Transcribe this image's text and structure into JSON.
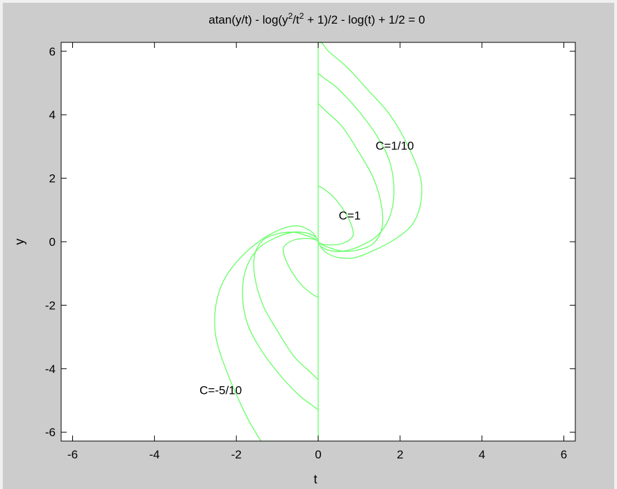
{
  "chart_data": {
    "type": "line",
    "title": "atan(y/t) - log(y^2/t^2 + 1)/2 - log(t) + 1/2 = 0",
    "title_parts": {
      "p1": "atan(y/t) - log(y",
      "sup1": "2",
      "p2": "/t",
      "sup2": "2",
      "p3": " + 1)/2 - log(t) + 1/2 = 0"
    },
    "xlabel": "t",
    "ylabel": "y",
    "xlim": [
      -6.28,
      6.28
    ],
    "ylim": [
      -6.28,
      6.28
    ],
    "xticks": [
      -6,
      -4,
      -2,
      0,
      2,
      4,
      6
    ],
    "yticks": [
      -6,
      -4,
      -2,
      0,
      2,
      4,
      6
    ],
    "xtick_labels": [
      "-6",
      "-4",
      "-2",
      "0",
      "2",
      "4",
      "6"
    ],
    "ytick_labels": [
      "-6",
      "-4",
      "-2",
      "0",
      "2",
      "4",
      "6"
    ],
    "line_color": "#66ff66",
    "annotations": [
      {
        "text": "C=1/10",
        "x": 1.4,
        "y": 2.9
      },
      {
        "text": "C=1",
        "x": 0.5,
        "y": 0.7
      },
      {
        "text": "C=-5/10",
        "x": -2.9,
        "y": -4.8
      }
    ],
    "series": [
      {
        "x": [
          0.0,
          0.0
        ],
        "y": [
          -6.28,
          6.28
        ]
      },
      {
        "x": [
          0.0,
          0.1,
          0.25,
          0.7,
          1.2,
          1.75,
          2.2,
          2.5,
          2.5,
          2.3,
          1.9,
          1.4,
          0.9,
          0.5,
          0.2,
          0.05
        ],
        "y": [
          6.28,
          6.25,
          6.0,
          5.5,
          4.8,
          4.0,
          3.0,
          2.0,
          1.2,
          0.55,
          0.1,
          -0.25,
          -0.5,
          -0.5,
          -0.35,
          -0.15
        ]
      },
      {
        "x": [
          0.0,
          0.15,
          0.5,
          1.0,
          1.45,
          1.75,
          1.85,
          1.75,
          1.45,
          1.0,
          0.6,
          0.3,
          0.1,
          0.0
        ],
        "y": [
          5.3,
          5.15,
          4.8,
          4.1,
          3.3,
          2.5,
          1.6,
          0.8,
          0.2,
          -0.15,
          -0.3,
          -0.28,
          -0.18,
          -0.05
        ]
      },
      {
        "x": [
          0.0,
          0.2,
          0.6,
          1.0,
          1.35,
          1.55,
          1.55,
          1.35,
          1.0,
          0.6,
          0.3,
          0.1,
          0.0
        ],
        "y": [
          4.35,
          4.1,
          3.6,
          2.8,
          2.0,
          1.1,
          0.4,
          -0.05,
          -0.25,
          -0.3,
          -0.2,
          -0.1,
          0.0
        ]
      },
      {
        "x": [
          0.0,
          0.15,
          0.45,
          0.75,
          0.85,
          0.6,
          0.25,
          0.03
        ],
        "y": [
          1.75,
          1.65,
          1.3,
          0.7,
          0.2,
          -0.05,
          -0.1,
          -0.05
        ]
      },
      {
        "x": [
          0.0,
          -0.15,
          -0.45,
          -0.75,
          -0.85,
          -0.6,
          -0.25,
          -0.03
        ],
        "y": [
          -1.75,
          -1.65,
          -1.3,
          -0.7,
          -0.2,
          0.05,
          0.1,
          0.05
        ]
      },
      {
        "x": [
          0.0,
          -0.2,
          -0.6,
          -1.0,
          -1.35,
          -1.55,
          -1.55,
          -1.35,
          -1.0,
          -0.6,
          -0.3,
          -0.1,
          0.0
        ],
        "y": [
          -4.35,
          -4.1,
          -3.6,
          -2.8,
          -2.0,
          -1.1,
          -0.4,
          0.05,
          0.25,
          0.3,
          0.2,
          0.1,
          0.0
        ]
      },
      {
        "x": [
          0.0,
          -0.15,
          -0.5,
          -1.0,
          -1.45,
          -1.75,
          -1.85,
          -1.75,
          -1.45,
          -1.0,
          -0.6,
          -0.3,
          -0.1,
          0.0
        ],
        "y": [
          -5.3,
          -5.15,
          -4.8,
          -4.1,
          -3.3,
          -2.5,
          -1.6,
          -0.8,
          -0.2,
          0.15,
          0.3,
          0.28,
          0.18,
          0.05
        ]
      },
      {
        "x": [
          -1.4,
          -1.75,
          -2.2,
          -2.5,
          -2.5,
          -2.3,
          -1.9,
          -1.4,
          -0.9,
          -0.5,
          -0.2,
          -0.05
        ],
        "y": [
          -6.28,
          -5.5,
          -4.2,
          -3.0,
          -2.0,
          -1.2,
          -0.5,
          0.05,
          0.4,
          0.5,
          0.35,
          0.15
        ]
      }
    ]
  }
}
